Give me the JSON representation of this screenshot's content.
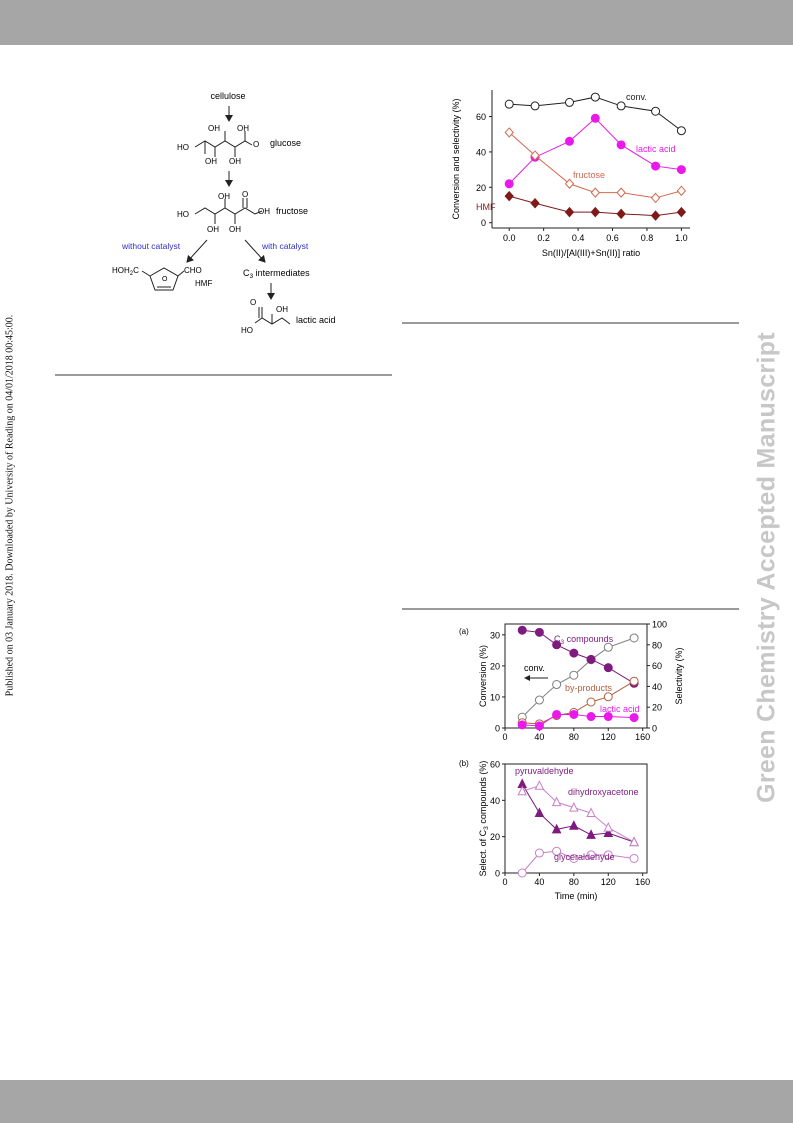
{
  "page": {
    "published_note": "Published on 03 January 2018. Downloaded by University of Reading on 04/01/2018 00:45:00.",
    "side_title": "Green Chemistry Accepted Manuscript"
  },
  "scheme": {
    "labels": {
      "cellulose": "cellulose",
      "glucose": "glucose",
      "fructose": "fructose",
      "without_catalyst": "without catalyst",
      "with_catalyst": "with catalyst",
      "hmf": "HMF",
      "hmf_formula_left": "HOH",
      "hmf_formula_sub": "2",
      "hmf_formula_c": "C",
      "cho": "CHO",
      "c3_prefix": "C",
      "c3_sub": "3",
      "c3_rest": " intermediates",
      "lactic_acid": "lactic acid",
      "oh": "OH",
      "ho": "HO",
      "o": "O"
    },
    "colors": {
      "catalyst_text": "#2e2ec8"
    }
  },
  "chart_data": [
    {
      "type": "line",
      "xlabel": "Sn(II)/[Al(III)+Sn(II)] ratio",
      "ylabel": "Conversion and selectivity (%)",
      "xlim": [
        -0.1,
        1.05
      ],
      "ylim": [
        -3,
        75
      ],
      "xticks": [
        0.0,
        0.2,
        0.4,
        0.6,
        0.8,
        1.0
      ],
      "xtick_labels": [
        "0.0",
        "0.2",
        "0.4",
        "0.6",
        "0.8",
        "1.0"
      ],
      "yticks": [
        0,
        20,
        40,
        60
      ],
      "x": [
        0.0,
        0.15,
        0.35,
        0.5,
        0.65,
        0.85,
        1.0
      ],
      "series": [
        {
          "name": "conv.",
          "values": [
            67,
            66,
            68,
            71,
            66,
            63,
            52
          ],
          "color": "#222222",
          "marker": "open-circle"
        },
        {
          "name": "lactic acid",
          "values": [
            22,
            37,
            46,
            59,
            44,
            32,
            30
          ],
          "color": "#ea19ea",
          "marker": "filled-circle"
        },
        {
          "name": "fructose",
          "values": [
            51,
            38,
            22,
            17,
            17,
            14,
            18
          ],
          "color": "#d2694f",
          "marker": "open-diamond"
        },
        {
          "name": "HMF",
          "values": [
            15,
            11,
            6,
            6,
            5,
            4,
            6
          ],
          "color": "#7f1a1a",
          "marker": "filled-diamond"
        }
      ],
      "grid": false,
      "legend": "inline labels"
    },
    {
      "type": "line",
      "panel_label": "(a)",
      "xlabel": "",
      "ylabel": "Conversion (%)",
      "y2label": "Selectivity (%)",
      "xlim": [
        0,
        165
      ],
      "ylim": [
        0,
        33.5
      ],
      "y2lim": [
        0,
        100
      ],
      "xticks": [
        0,
        40,
        80,
        120,
        160
      ],
      "yticks": [
        0,
        10,
        20,
        30
      ],
      "y2ticks": [
        0,
        20,
        40,
        60,
        80,
        100
      ],
      "x": [
        20,
        40,
        60,
        80,
        100,
        120,
        150
      ],
      "series": [
        {
          "name": "conv.",
          "axis": "left",
          "values": [
            3.5,
            9,
            14,
            17,
            22,
            26,
            29
          ],
          "color": "#7f7f7f",
          "marker": "open-circle"
        },
        {
          "name": "C3 compounds",
          "axis": "right",
          "values": [
            94,
            92,
            80,
            72,
            66,
            58,
            43
          ],
          "color": "#7f1a7f",
          "marker": "filled-circle"
        },
        {
          "name": "by-products",
          "axis": "right",
          "values": [
            5,
            4,
            12,
            15,
            25,
            30,
            45
          ],
          "color": "#b06040",
          "marker": "open-circle"
        },
        {
          "name": "lactic acid",
          "axis": "right",
          "values": [
            3,
            2,
            13,
            13,
            11,
            11,
            10
          ],
          "color": "#ea19ea",
          "marker": "filled-circle"
        }
      ],
      "arrow_label": "conv.",
      "c3_label_prefix": "C",
      "c3_label_sub": "3",
      "c3_label_rest": " compounds"
    },
    {
      "type": "line",
      "panel_label": "(b)",
      "xlabel": "Time (min)",
      "ylabel_prefix": "Select. of C",
      "ylabel_sub": "3",
      "ylabel_rest": " compounds (%)",
      "xlim": [
        0,
        165
      ],
      "ylim": [
        0,
        60
      ],
      "xticks": [
        0,
        40,
        80,
        120,
        160
      ],
      "yticks": [
        0,
        20,
        40,
        60
      ],
      "x": [
        20,
        40,
        60,
        80,
        100,
        120,
        150
      ],
      "series": [
        {
          "name": "pyruvaldehyde",
          "values": [
            49,
            33,
            24,
            26,
            21,
            22,
            17
          ],
          "color": "#7f1a7f",
          "marker": "filled-triangle"
        },
        {
          "name": "dihydroxyacetone",
          "values": [
            45,
            48,
            39,
            36,
            33,
            25,
            17
          ],
          "color": "#c880c8",
          "marker": "open-triangle"
        },
        {
          "name": "glyceraldehyde",
          "values": [
            0,
            11,
            12,
            8,
            10,
            10,
            8
          ],
          "color": "#c880c8",
          "marker": "open-circle"
        }
      ]
    }
  ]
}
